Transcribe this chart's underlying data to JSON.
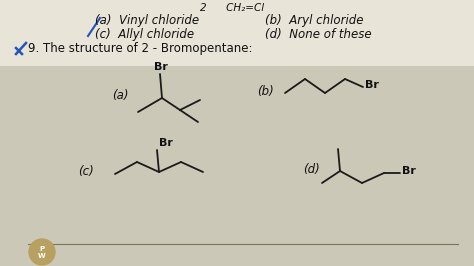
{
  "bg_color": "#ccc8b8",
  "title_text": "9. The structure of 2 - Bromopentane:",
  "top_text1": "(a)  Vinyl chloride",
  "top_text2": "(b)  Aryl chloride",
  "top_text3": "(c)  Allyl chloride",
  "top_text4": "(d)  None of these",
  "top_partial": "2      CH₂=Cl",
  "label_a": "(a)",
  "label_b": "(b)",
  "label_c": "(c)",
  "label_d": "(d)",
  "br_label": "Br",
  "line_color": "#1a1a1a",
  "text_color": "#111111",
  "blue_color": "#2255bb",
  "font_size_main": 8.5,
  "font_size_br": 8.0,
  "font_size_label": 8.5
}
